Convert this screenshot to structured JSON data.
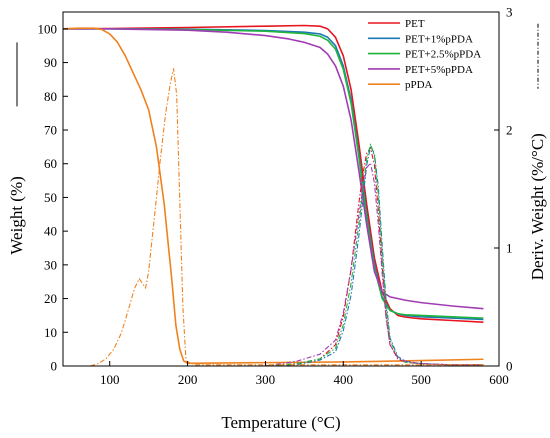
{
  "chart_data": {
    "type": "line",
    "title": "",
    "xlabel": "Temperature (°C)",
    "ylabel": "Weight (%)",
    "y2label": "Deriv. Weight (%/°C)",
    "xlim": [
      40,
      600
    ],
    "ylim": [
      0,
      105
    ],
    "y2lim": [
      0,
      3
    ],
    "xticks": [
      100,
      200,
      300,
      400,
      500,
      600
    ],
    "xtick_labels": [
      "100",
      "200",
      "300",
      "400",
      "500",
      "600"
    ],
    "yticks": [
      0,
      10,
      20,
      30,
      40,
      50,
      60,
      70,
      80,
      90,
      100
    ],
    "ytick_labels": [
      "0",
      "10",
      "20",
      "30",
      "40",
      "50",
      "60",
      "70",
      "80",
      "90",
      "100"
    ],
    "y2ticks": [
      0,
      1,
      2,
      3
    ],
    "y2tick_labels": [
      "0",
      "1",
      "2",
      "3"
    ],
    "legend_position": "top-right",
    "grid": false,
    "series": [
      {
        "name": "PET",
        "color": "#e8141e",
        "axis": "left",
        "style": "solid",
        "x": [
          40,
          100,
          200,
          300,
          350,
          370,
          380,
          390,
          400,
          410,
          420,
          430,
          440,
          450,
          460,
          470,
          480,
          500,
          540,
          580
        ],
        "y": [
          100,
          100.1,
          100.4,
          100.8,
          101.0,
          100.8,
          100.0,
          97.5,
          92.0,
          82.0,
          66.0,
          48.0,
          32.0,
          22.0,
          17.0,
          15.0,
          14.5,
          14.0,
          13.5,
          13.0
        ]
      },
      {
        "name": "PET+1%pPDA",
        "color": "#1f78b4",
        "axis": "left",
        "style": "solid",
        "x": [
          40,
          100,
          200,
          300,
          350,
          370,
          380,
          390,
          400,
          410,
          420,
          430,
          440,
          450,
          460,
          470,
          480,
          500,
          540,
          580
        ],
        "y": [
          100,
          100.0,
          99.9,
          99.5,
          99.0,
          98.5,
          97.5,
          95.0,
          89.0,
          79.0,
          63.0,
          45.0,
          30.0,
          20.5,
          16.5,
          15.5,
          15.0,
          14.6,
          14.2,
          13.8
        ]
      },
      {
        "name": "PET+2.5%pPDA",
        "color": "#1fb53c",
        "axis": "left",
        "style": "solid",
        "x": [
          40,
          100,
          200,
          300,
          350,
          370,
          380,
          390,
          400,
          410,
          420,
          430,
          440,
          450,
          460,
          470,
          480,
          500,
          540,
          580
        ],
        "y": [
          100,
          100.0,
          99.8,
          99.3,
          98.6,
          97.8,
          96.6,
          94.0,
          88.0,
          78.0,
          62.0,
          44.0,
          29.0,
          20.0,
          16.5,
          15.5,
          15.2,
          15.0,
          14.6,
          14.2
        ]
      },
      {
        "name": "PET+5%pPDA",
        "color": "#a23cb4",
        "axis": "left",
        "style": "solid",
        "x": [
          40,
          100,
          200,
          250,
          300,
          330,
          350,
          370,
          380,
          390,
          400,
          410,
          420,
          430,
          440,
          450,
          460,
          480,
          500,
          540,
          580
        ],
        "y": [
          100,
          100.0,
          99.6,
          99.0,
          98.0,
          97.0,
          96.0,
          94.5,
          92.5,
          89.0,
          83.0,
          73.0,
          58.0,
          42.0,
          28.0,
          22.0,
          20.5,
          19.5,
          18.8,
          17.8,
          17.0
        ]
      },
      {
        "name": "pPDA",
        "color": "#f0821e",
        "axis": "left",
        "style": "solid",
        "x": [
          40,
          60,
          80,
          90,
          100,
          110,
          120,
          130,
          140,
          150,
          160,
          170,
          180,
          185,
          190,
          195,
          200,
          250,
          300,
          400,
          500,
          580
        ],
        "y": [
          100,
          100.2,
          100.2,
          99.8,
          98.5,
          96.0,
          92.0,
          87.0,
          82.0,
          76.0,
          65.0,
          48.0,
          25.0,
          12.0,
          5.0,
          1.5,
          0.8,
          0.9,
          1.0,
          1.2,
          1.6,
          2.0
        ]
      },
      {
        "name": "PET",
        "color": "#e8141e",
        "axis": "right",
        "style": "dashdot",
        "x": [
          300,
          340,
          370,
          390,
          400,
          410,
          420,
          425,
          430,
          435,
          440,
          445,
          450,
          455,
          460,
          470,
          480,
          500,
          540,
          580
        ],
        "y": [
          0.0,
          0.02,
          0.06,
          0.18,
          0.42,
          0.82,
          1.38,
          1.62,
          1.8,
          1.85,
          1.7,
          1.32,
          0.85,
          0.42,
          0.18,
          0.06,
          0.03,
          0.02,
          0.01,
          0.01
        ]
      },
      {
        "name": "PET+1%pPDA",
        "color": "#1f78b4",
        "axis": "right",
        "style": "dashdot",
        "x": [
          300,
          340,
          370,
          390,
          400,
          410,
          420,
          425,
          430,
          435,
          440,
          445,
          450,
          455,
          460,
          470,
          480,
          500,
          540,
          580
        ],
        "y": [
          0.0,
          0.01,
          0.05,
          0.12,
          0.3,
          0.6,
          1.1,
          1.4,
          1.7,
          1.86,
          1.8,
          1.52,
          1.02,
          0.55,
          0.24,
          0.08,
          0.04,
          0.02,
          0.01,
          0.01
        ]
      },
      {
        "name": "PET+2.5%pPDA",
        "color": "#1fb53c",
        "axis": "right",
        "style": "dashdot",
        "x": [
          300,
          340,
          370,
          390,
          400,
          410,
          420,
          425,
          430,
          435,
          440,
          445,
          450,
          455,
          460,
          470,
          480,
          500,
          540,
          580
        ],
        "y": [
          0.0,
          0.02,
          0.06,
          0.15,
          0.35,
          0.7,
          1.2,
          1.48,
          1.75,
          1.88,
          1.78,
          1.45,
          0.95,
          0.5,
          0.22,
          0.07,
          0.03,
          0.02,
          0.01,
          0.01
        ]
      },
      {
        "name": "PET+5%pPDA",
        "color": "#a23cb4",
        "axis": "right",
        "style": "dashdot",
        "x": [
          300,
          340,
          370,
          390,
          400,
          410,
          420,
          425,
          430,
          435,
          440,
          445,
          450,
          455,
          460,
          470,
          480,
          500,
          540,
          580
        ],
        "y": [
          0.0,
          0.04,
          0.1,
          0.22,
          0.45,
          0.82,
          1.28,
          1.5,
          1.68,
          1.72,
          1.55,
          1.2,
          0.78,
          0.4,
          0.18,
          0.07,
          0.04,
          0.02,
          0.01,
          0.01
        ]
      },
      {
        "name": "pPDA",
        "color": "#f0821e",
        "axis": "right",
        "style": "dashdot",
        "x": [
          75,
          85,
          95,
          105,
          115,
          125,
          132,
          138,
          142,
          146,
          150,
          158,
          165,
          172,
          178,
          182,
          186,
          190,
          194,
          198,
          210,
          300,
          400,
          500,
          580
        ],
        "y": [
          0.0,
          0.02,
          0.06,
          0.14,
          0.28,
          0.5,
          0.66,
          0.74,
          0.7,
          0.66,
          0.8,
          1.3,
          1.75,
          2.15,
          2.4,
          2.52,
          2.3,
          1.4,
          0.5,
          0.04,
          0.01,
          0.01,
          0.01,
          0.01,
          0.01
        ]
      }
    ]
  }
}
